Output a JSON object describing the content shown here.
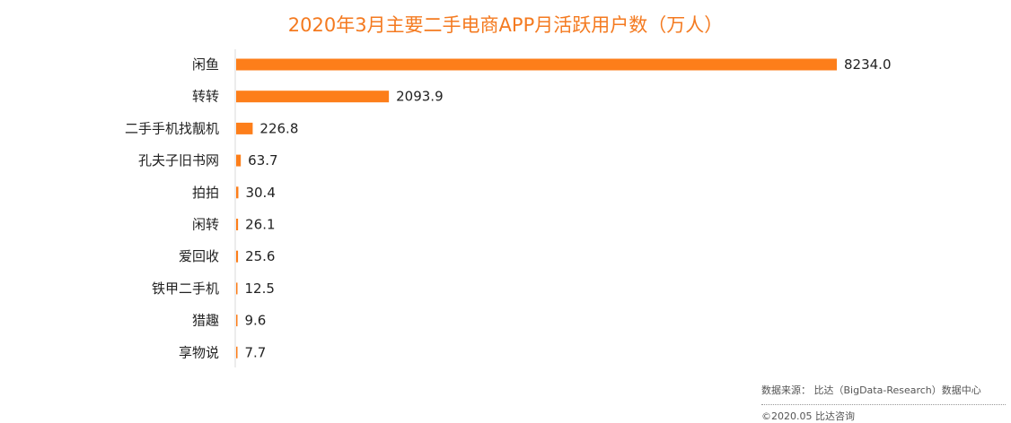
{
  "chart_data": {
    "type": "bar",
    "orientation": "horizontal",
    "title": "2020年3月主要二手电商APP月活跃用户数（万人）",
    "categories": [
      "闲鱼",
      "转转",
      "二手手机找靓机",
      "孔夫子旧书网",
      "拍拍",
      "闲转",
      "爱回收",
      "铁甲二手机",
      "猎趣",
      "享物说"
    ],
    "values": [
      8234.0,
      2093.9,
      226.8,
      63.7,
      30.4,
      26.1,
      25.6,
      12.5,
      9.6,
      7.7
    ],
    "value_labels": [
      "8234.0",
      "2093.9",
      "226.8",
      "63.7",
      "30.4",
      "26.1",
      "25.6",
      "12.5",
      "9.6",
      "7.7"
    ],
    "xlim": [
      0,
      8234
    ],
    "grid": false,
    "bar_color": "#fd7e1a"
  },
  "footer": {
    "source": "数据来源： 比达（BigData-Research）数据中心",
    "copyright": "©2020.05  比达咨询"
  }
}
